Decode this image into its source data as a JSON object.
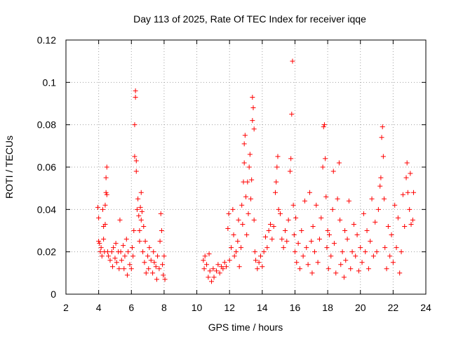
{
  "chart_data": {
    "type": "scatter",
    "title": "Day 113 of 2025, Rate Of TEC Index for receiver iqqe",
    "xlabel": "GPS time / hours",
    "ylabel": "ROTI / TECUs",
    "xlim": [
      2,
      24
    ],
    "ylim": [
      0,
      0.12
    ],
    "xticks": [
      2,
      4,
      6,
      8,
      10,
      12,
      14,
      16,
      18,
      20,
      22,
      24
    ],
    "yticks": [
      0,
      0.02,
      0.04,
      0.06,
      0.08,
      0.1,
      0.12
    ],
    "ytick_labels": [
      "0",
      "0.02",
      "0.04",
      "0.06",
      "0.08",
      "0.1",
      "0.12"
    ],
    "grid": true,
    "marker": "+",
    "color": "#ff0000",
    "series": [
      {
        "name": "ROTI",
        "points": [
          [
            3.95,
            0.041
          ],
          [
            4.0,
            0.036
          ],
          [
            4.0,
            0.025
          ],
          [
            4.05,
            0.024
          ],
          [
            4.1,
            0.02
          ],
          [
            4.15,
            0.022
          ],
          [
            4.2,
            0.018
          ],
          [
            4.25,
            0.04
          ],
          [
            4.3,
            0.026
          ],
          [
            4.3,
            0.032
          ],
          [
            4.35,
            0.02
          ],
          [
            4.4,
            0.033
          ],
          [
            4.4,
            0.042
          ],
          [
            4.45,
            0.048
          ],
          [
            4.45,
            0.055
          ],
          [
            4.5,
            0.06
          ],
          [
            4.5,
            0.047
          ],
          [
            4.55,
            0.02
          ],
          [
            4.6,
            0.018
          ],
          [
            4.7,
            0.016
          ],
          [
            4.8,
            0.02
          ],
          [
            4.85,
            0.013
          ],
          [
            4.9,
            0.022
          ],
          [
            5.0,
            0.017
          ],
          [
            5.05,
            0.024
          ],
          [
            5.1,
            0.015
          ],
          [
            5.2,
            0.02
          ],
          [
            5.25,
            0.012
          ],
          [
            5.3,
            0.035
          ],
          [
            5.35,
            0.02
          ],
          [
            5.4,
            0.016
          ],
          [
            5.5,
            0.023
          ],
          [
            5.55,
            0.012
          ],
          [
            5.6,
            0.018
          ],
          [
            5.7,
            0.026
          ],
          [
            5.75,
            0.009
          ],
          [
            5.8,
            0.02
          ],
          [
            5.9,
            0.014
          ],
          [
            6.0,
            0.012
          ],
          [
            6.05,
            0.022
          ],
          [
            6.1,
            0.018
          ],
          [
            6.15,
            0.03
          ],
          [
            6.2,
            0.065
          ],
          [
            6.2,
            0.08
          ],
          [
            6.25,
            0.093
          ],
          [
            6.25,
            0.096
          ],
          [
            6.3,
            0.058
          ],
          [
            6.3,
            0.063
          ],
          [
            6.35,
            0.04
          ],
          [
            6.4,
            0.045
          ],
          [
            6.45,
            0.037
          ],
          [
            6.5,
            0.025
          ],
          [
            6.5,
            0.03
          ],
          [
            6.55,
            0.041
          ],
          [
            6.6,
            0.035
          ],
          [
            6.6,
            0.048
          ],
          [
            6.65,
            0.039
          ],
          [
            6.7,
            0.02
          ],
          [
            6.75,
            0.032
          ],
          [
            6.8,
            0.015
          ],
          [
            6.85,
            0.025
          ],
          [
            6.9,
            0.01
          ],
          [
            7.0,
            0.018
          ],
          [
            7.05,
            0.012
          ],
          [
            7.1,
            0.022
          ],
          [
            7.2,
            0.016
          ],
          [
            7.3,
            0.01
          ],
          [
            7.35,
            0.02
          ],
          [
            7.4,
            0.015
          ],
          [
            7.5,
            0.013
          ],
          [
            7.55,
            0.007
          ],
          [
            7.6,
            0.018
          ],
          [
            7.7,
            0.012
          ],
          [
            7.75,
            0.025
          ],
          [
            7.8,
            0.038
          ],
          [
            7.85,
            0.03
          ],
          [
            7.9,
            0.014
          ],
          [
            7.95,
            0.009
          ],
          [
            8.0,
            0.018
          ],
          [
            8.05,
            0.007
          ],
          [
            10.4,
            0.016
          ],
          [
            10.45,
            0.012
          ],
          [
            10.5,
            0.018
          ],
          [
            10.6,
            0.014
          ],
          [
            10.7,
            0.008
          ],
          [
            10.75,
            0.019
          ],
          [
            10.8,
            0.011
          ],
          [
            10.9,
            0.006
          ],
          [
            11.0,
            0.012
          ],
          [
            11.05,
            0.008
          ],
          [
            11.2,
            0.011
          ],
          [
            11.3,
            0.014
          ],
          [
            11.4,
            0.01
          ],
          [
            11.5,
            0.013
          ],
          [
            11.6,
            0.012
          ],
          [
            11.7,
            0.015
          ],
          [
            11.8,
            0.013
          ],
          [
            11.9,
            0.031
          ],
          [
            11.95,
            0.038
          ],
          [
            12.0,
            0.016
          ],
          [
            12.1,
            0.022
          ],
          [
            12.2,
            0.04
          ],
          [
            12.25,
            0.028
          ],
          [
            12.3,
            0.018
          ],
          [
            12.4,
            0.02
          ],
          [
            12.5,
            0.025
          ],
          [
            12.55,
            0.035
          ],
          [
            12.6,
            0.013
          ],
          [
            12.7,
            0.022
          ],
          [
            12.75,
            0.042
          ],
          [
            12.8,
            0.033
          ],
          [
            12.85,
            0.053
          ],
          [
            12.9,
            0.062
          ],
          [
            12.9,
            0.071
          ],
          [
            12.95,
            0.075
          ],
          [
            13.0,
            0.046
          ],
          [
            13.05,
            0.028
          ],
          [
            13.1,
            0.053
          ],
          [
            13.15,
            0.038
          ],
          [
            13.2,
            0.06
          ],
          [
            13.25,
            0.066
          ],
          [
            13.3,
            0.045
          ],
          [
            13.35,
            0.054
          ],
          [
            13.4,
            0.082
          ],
          [
            13.4,
            0.093
          ],
          [
            13.45,
            0.088
          ],
          [
            13.5,
            0.078
          ],
          [
            13.5,
            0.035
          ],
          [
            13.55,
            0.02
          ],
          [
            13.6,
            0.016
          ],
          [
            13.7,
            0.012
          ],
          [
            13.8,
            0.015
          ],
          [
            13.9,
            0.018
          ],
          [
            14.0,
            0.013
          ],
          [
            14.1,
            0.02
          ],
          [
            14.2,
            0.027
          ],
          [
            14.3,
            0.022
          ],
          [
            14.4,
            0.03
          ],
          [
            14.5,
            0.033
          ],
          [
            14.6,
            0.026
          ],
          [
            14.7,
            0.032
          ],
          [
            14.8,
            0.048
          ],
          [
            14.85,
            0.053
          ],
          [
            14.9,
            0.06
          ],
          [
            14.95,
            0.065
          ],
          [
            15.0,
            0.04
          ],
          [
            15.1,
            0.038
          ],
          [
            15.2,
            0.026
          ],
          [
            15.3,
            0.022
          ],
          [
            15.4,
            0.03
          ],
          [
            15.5,
            0.025
          ],
          [
            15.6,
            0.035
          ],
          [
            15.7,
            0.058
          ],
          [
            15.75,
            0.064
          ],
          [
            15.8,
            0.085
          ],
          [
            15.85,
            0.11
          ],
          [
            15.9,
            0.042
          ],
          [
            15.95,
            0.028
          ],
          [
            16.0,
            0.02
          ],
          [
            16.05,
            0.036
          ],
          [
            16.1,
            0.015
          ],
          [
            16.2,
            0.024
          ],
          [
            16.3,
            0.012
          ],
          [
            16.4,
            0.03
          ],
          [
            16.5,
            0.018
          ],
          [
            16.6,
            0.044
          ],
          [
            16.7,
            0.022
          ],
          [
            16.8,
            0.014
          ],
          [
            16.9,
            0.048
          ],
          [
            17.0,
            0.025
          ],
          [
            17.05,
            0.01
          ],
          [
            17.1,
            0.032
          ],
          [
            17.2,
            0.02
          ],
          [
            17.3,
            0.042
          ],
          [
            17.4,
            0.015
          ],
          [
            17.5,
            0.026
          ],
          [
            17.6,
            0.036
          ],
          [
            17.7,
            0.06
          ],
          [
            17.75,
            0.079
          ],
          [
            17.8,
            0.08
          ],
          [
            17.85,
            0.064
          ],
          [
            17.9,
            0.046
          ],
          [
            17.95,
            0.022
          ],
          [
            18.0,
            0.03
          ],
          [
            18.05,
            0.012
          ],
          [
            18.1,
            0.028
          ],
          [
            18.2,
            0.018
          ],
          [
            18.3,
            0.04
          ],
          [
            18.35,
            0.058
          ],
          [
            18.4,
            0.024
          ],
          [
            18.5,
            0.01
          ],
          [
            18.6,
            0.045
          ],
          [
            18.7,
            0.062
          ],
          [
            18.75,
            0.035
          ],
          [
            18.8,
            0.014
          ],
          [
            18.9,
            0.02
          ],
          [
            19.0,
            0.008
          ],
          [
            19.05,
            0.03
          ],
          [
            19.1,
            0.016
          ],
          [
            19.2,
            0.026
          ],
          [
            19.3,
            0.044
          ],
          [
            19.4,
            0.012
          ],
          [
            19.5,
            0.02
          ],
          [
            19.6,
            0.033
          ],
          [
            19.7,
            0.018
          ],
          [
            19.8,
            0.028
          ],
          [
            19.9,
            0.011
          ],
          [
            20.0,
            0.022
          ],
          [
            20.1,
            0.015
          ],
          [
            20.2,
            0.038
          ],
          [
            20.3,
            0.02
          ],
          [
            20.4,
            0.03
          ],
          [
            20.5,
            0.012
          ],
          [
            20.6,
            0.025
          ],
          [
            20.7,
            0.045
          ],
          [
            20.8,
            0.018
          ],
          [
            20.9,
            0.034
          ],
          [
            21.0,
            0.02
          ],
          [
            21.1,
            0.04
          ],
          [
            21.2,
            0.051
          ],
          [
            21.25,
            0.055
          ],
          [
            21.3,
            0.074
          ],
          [
            21.35,
            0.079
          ],
          [
            21.4,
            0.065
          ],
          [
            21.45,
            0.045
          ],
          [
            21.5,
            0.022
          ],
          [
            21.6,
            0.012
          ],
          [
            21.7,
            0.032
          ],
          [
            21.8,
            0.018
          ],
          [
            21.9,
            0.028
          ],
          [
            22.0,
            0.015
          ],
          [
            22.1,
            0.042
          ],
          [
            22.2,
            0.022
          ],
          [
            22.3,
            0.036
          ],
          [
            22.4,
            0.01
          ],
          [
            22.5,
            0.02
          ],
          [
            22.6,
            0.047
          ],
          [
            22.7,
            0.032
          ],
          [
            22.8,
            0.055
          ],
          [
            22.85,
            0.062
          ],
          [
            22.9,
            0.048
          ],
          [
            23.0,
            0.04
          ],
          [
            23.05,
            0.057
          ],
          [
            23.1,
            0.033
          ],
          [
            23.2,
            0.035
          ],
          [
            23.25,
            0.048
          ]
        ]
      }
    ]
  }
}
